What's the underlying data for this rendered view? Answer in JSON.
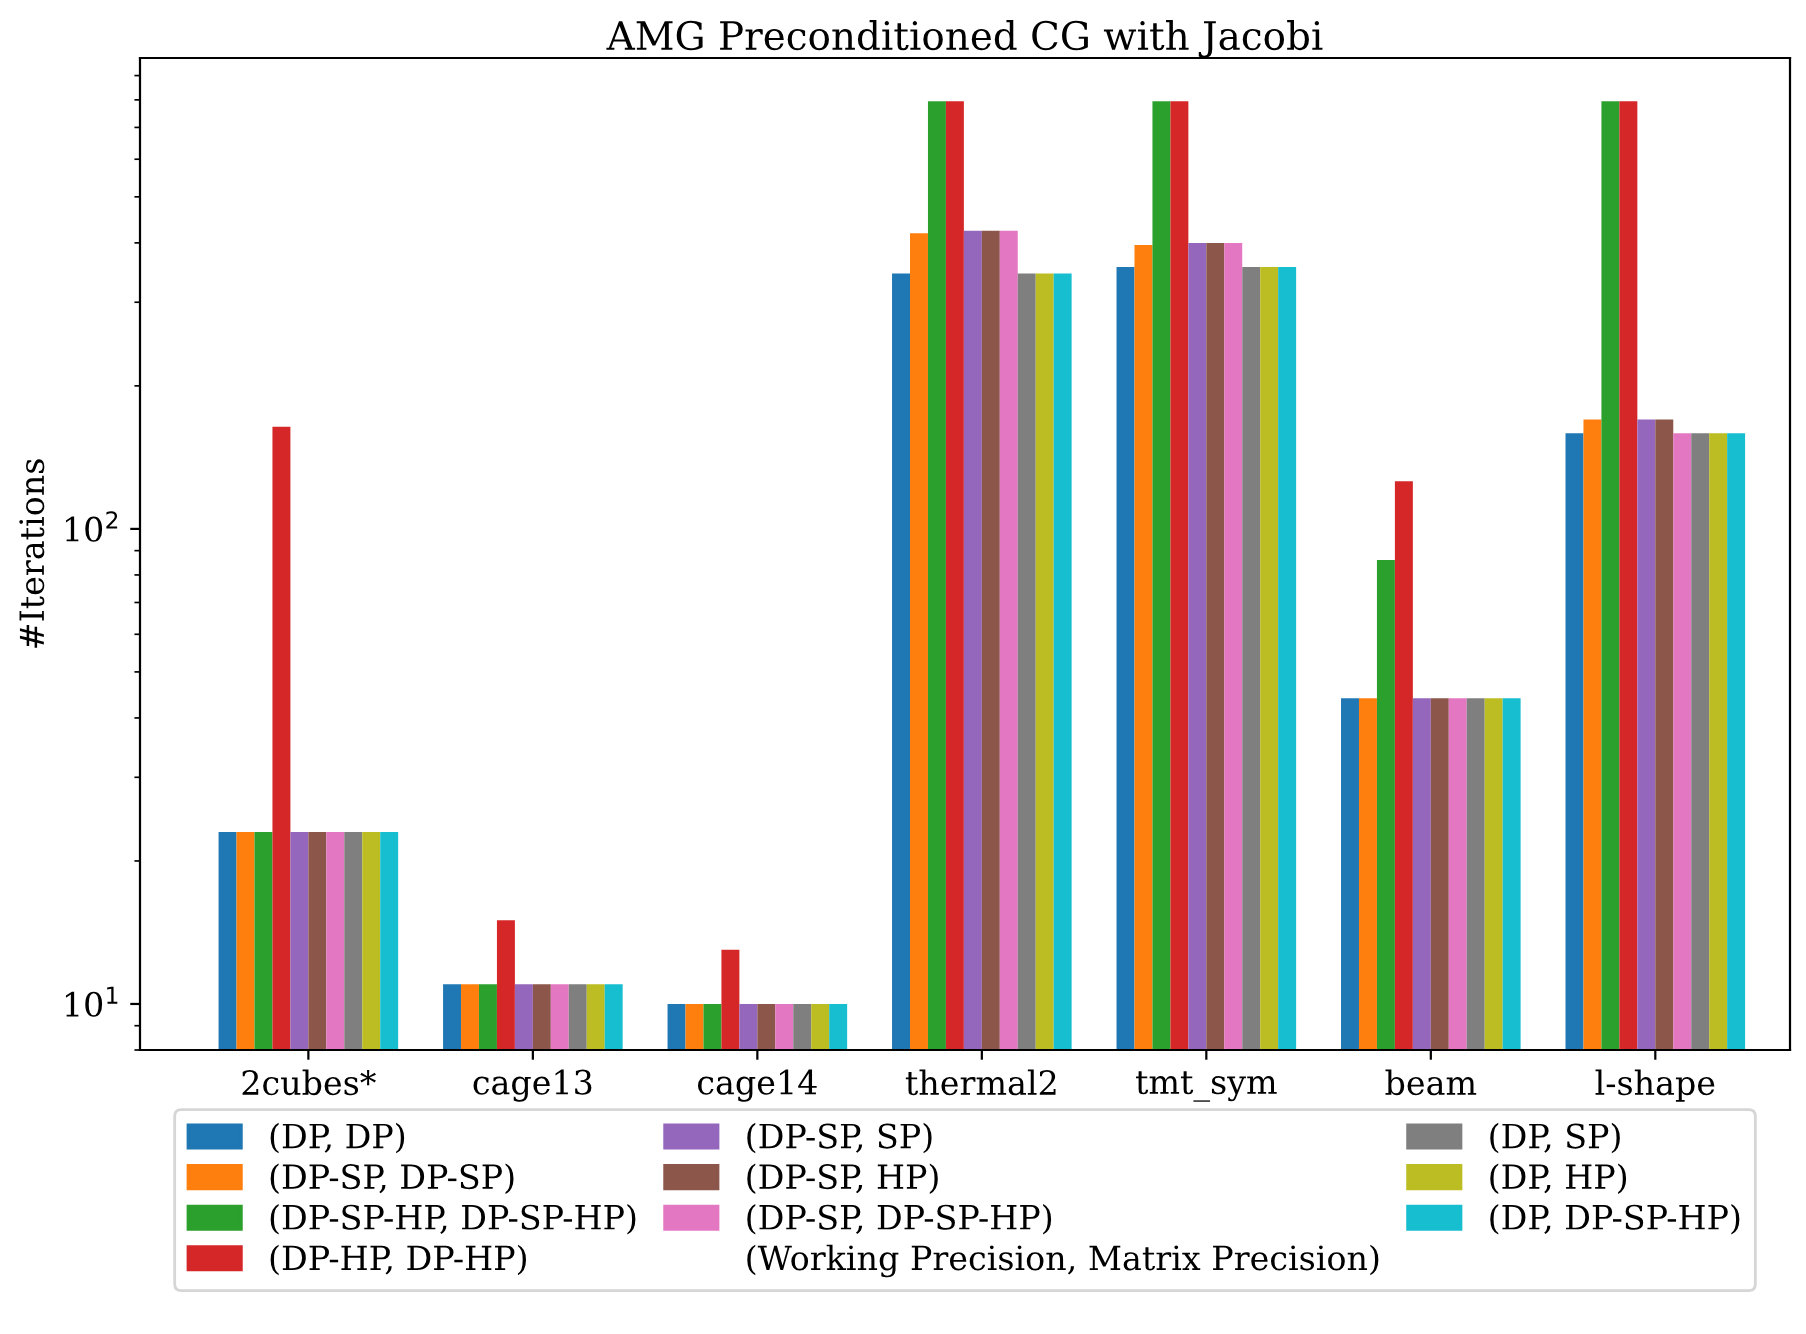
{
  "chart_data": {
    "type": "bar",
    "title": "AMG Preconditioned CG with Jacobi",
    "ylabel": "#Iterations",
    "legend_title": "(Working Precision, Matrix Precision)",
    "log": "y",
    "ylim": [
      8,
      980
    ],
    "yticks": [
      {
        "value": 10,
        "label": "10$^{1}$"
      },
      {
        "value": 100,
        "label": "10$^{2}$"
      }
    ],
    "grid": false,
    "legend": "bottom",
    "categories": [
      "2cubes*",
      "cage13",
      "cage14",
      "thermal2",
      "tmt_sym",
      "beam",
      "l-shape"
    ],
    "series": [
      {
        "name": "(DP, DP)",
        "color": "#1f77b4",
        "values": [
          23,
          11,
          10,
          345,
          356,
          44,
          159
        ]
      },
      {
        "name": "(DP-SP, DP-SP)",
        "color": "#ff7f0e",
        "values": [
          23,
          11,
          10,
          419,
          396,
          44,
          170
        ]
      },
      {
        "name": "(DP-SP-HP, DP-SP-HP)",
        "color": "#2ca02c",
        "values": [
          23,
          11,
          10,
          795,
          795,
          86,
          795
        ]
      },
      {
        "name": "(DP-HP, DP-HP)",
        "color": "#d62728",
        "values": [
          164,
          15,
          13,
          795,
          795,
          126,
          795
        ]
      },
      {
        "name": "(DP-SP, SP)",
        "color": "#9467bd",
        "values": [
          23,
          11,
          10,
          424,
          400,
          44,
          170
        ]
      },
      {
        "name": "(DP-SP, HP)",
        "color": "#8c564b",
        "values": [
          23,
          11,
          10,
          424,
          400,
          44,
          170
        ]
      },
      {
        "name": "(DP-SP, DP-SP-HP)",
        "color": "#e377c2",
        "values": [
          23,
          11,
          10,
          424,
          400,
          44,
          159
        ]
      },
      {
        "name": "(DP, SP)",
        "color": "#7f7f7f",
        "values": [
          23,
          11,
          10,
          345,
          356,
          44,
          159
        ]
      },
      {
        "name": "(DP, HP)",
        "color": "#bcbd22",
        "values": [
          23,
          11,
          10,
          345,
          356,
          44,
          159
        ]
      },
      {
        "name": "(DP, DP-SP-HP)",
        "color": "#17becf",
        "values": [
          23,
          11,
          10,
          345,
          356,
          44,
          159
        ]
      }
    ]
  }
}
